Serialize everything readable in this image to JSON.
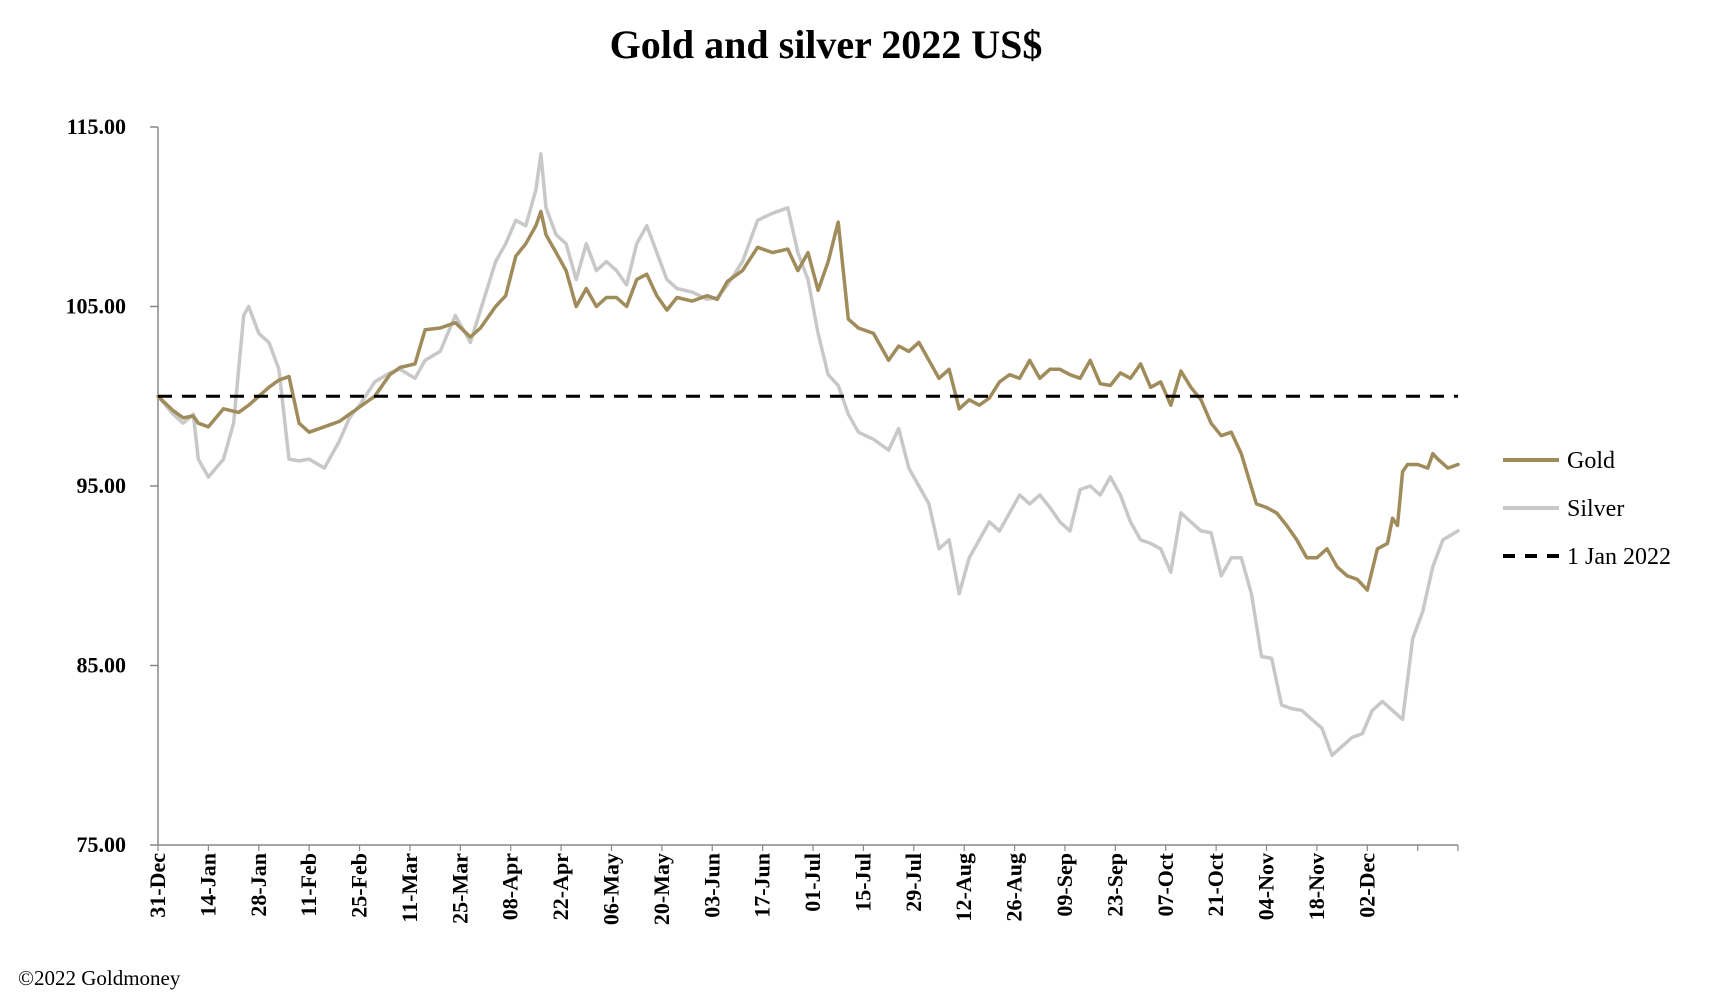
{
  "chart_data": {
    "type": "line",
    "title": "Gold and silver 2022  US$",
    "xlabel": "",
    "ylabel": "",
    "ylim": [
      75,
      115
    ],
    "yticks": [
      "75.00",
      "85.00",
      "95.00",
      "105.00",
      "115.00"
    ],
    "ytick_values": [
      75,
      85,
      95,
      105,
      115
    ],
    "categories": [
      "31-Dec",
      "14-Jan",
      "28-Jan",
      "11-Feb",
      "25-Feb",
      "11-Mar",
      "25-Mar",
      "08-Apr",
      "22-Apr",
      "06-May",
      "20-May",
      "03-Jun",
      "17-Jun",
      "01-Jul",
      "15-Jul",
      "29-Jul",
      "12-Aug",
      "26-Aug",
      "09-Sep",
      "23-Sep",
      "07-Oct",
      "21-Oct",
      "04-Nov",
      "18-Nov",
      "02-Dec"
    ],
    "x_span": 25.8,
    "legend_position": "right",
    "series": [
      {
        "name": "Gold",
        "color": "#a08c5b",
        "style": "solid",
        "points": [
          [
            0,
            100
          ],
          [
            0.3,
            99.2
          ],
          [
            0.5,
            98.8
          ],
          [
            0.7,
            98.9
          ],
          [
            0.8,
            98.5
          ],
          [
            1.0,
            98.3
          ],
          [
            1.3,
            99.3
          ],
          [
            1.6,
            99.1
          ],
          [
            1.8,
            99.5
          ],
          [
            2.0,
            100
          ],
          [
            2.2,
            100.5
          ],
          [
            2.4,
            100.9
          ],
          [
            2.6,
            101.1
          ],
          [
            2.8,
            98.5
          ],
          [
            3.0,
            98.0
          ],
          [
            3.3,
            98.3
          ],
          [
            3.6,
            98.6
          ],
          [
            3.8,
            99.0
          ],
          [
            4.0,
            99.4
          ],
          [
            4.3,
            100.0
          ],
          [
            4.6,
            101.2
          ],
          [
            4.8,
            101.6
          ],
          [
            5.1,
            101.8
          ],
          [
            5.3,
            103.7
          ],
          [
            5.6,
            103.8
          ],
          [
            5.9,
            104.1
          ],
          [
            6.2,
            103.3
          ],
          [
            6.4,
            103.8
          ],
          [
            6.7,
            105.0
          ],
          [
            6.9,
            105.6
          ],
          [
            7.1,
            107.8
          ],
          [
            7.3,
            108.5
          ],
          [
            7.5,
            109.5
          ],
          [
            7.6,
            110.3
          ],
          [
            7.7,
            109.0
          ],
          [
            7.9,
            108.0
          ],
          [
            8.1,
            107.0
          ],
          [
            8.3,
            105.0
          ],
          [
            8.5,
            106.0
          ],
          [
            8.7,
            105.0
          ],
          [
            8.9,
            105.5
          ],
          [
            9.1,
            105.5
          ],
          [
            9.3,
            105.0
          ],
          [
            9.5,
            106.5
          ],
          [
            9.7,
            106.8
          ],
          [
            9.9,
            105.6
          ],
          [
            10.1,
            104.8
          ],
          [
            10.3,
            105.5
          ],
          [
            10.6,
            105.3
          ],
          [
            10.9,
            105.6
          ],
          [
            11.1,
            105.4
          ],
          [
            11.3,
            106.4
          ],
          [
            11.6,
            107.0
          ],
          [
            11.9,
            108.3
          ],
          [
            12.2,
            108.0
          ],
          [
            12.5,
            108.2
          ],
          [
            12.7,
            107.0
          ],
          [
            12.9,
            108.0
          ],
          [
            13.1,
            105.9
          ],
          [
            13.3,
            107.5
          ],
          [
            13.5,
            109.7
          ],
          [
            13.7,
            104.3
          ],
          [
            13.9,
            103.8
          ],
          [
            14.2,
            103.5
          ],
          [
            14.5,
            102.0
          ],
          [
            14.7,
            102.8
          ],
          [
            14.9,
            102.5
          ],
          [
            15.1,
            103.0
          ],
          [
            15.3,
            102.0
          ],
          [
            15.5,
            101.0
          ],
          [
            15.7,
            101.5
          ],
          [
            15.9,
            99.3
          ],
          [
            16.1,
            99.8
          ],
          [
            16.3,
            99.5
          ],
          [
            16.5,
            99.9
          ],
          [
            16.7,
            100.8
          ],
          [
            16.9,
            101.2
          ],
          [
            17.1,
            101.0
          ],
          [
            17.3,
            102.0
          ],
          [
            17.5,
            101.0
          ],
          [
            17.7,
            101.5
          ],
          [
            17.9,
            101.5
          ],
          [
            18.1,
            101.2
          ],
          [
            18.3,
            101.0
          ],
          [
            18.5,
            102.0
          ],
          [
            18.7,
            100.7
          ],
          [
            18.9,
            100.6
          ],
          [
            19.1,
            101.3
          ],
          [
            19.3,
            101.0
          ],
          [
            19.5,
            101.8
          ],
          [
            19.7,
            100.5
          ],
          [
            19.9,
            100.8
          ],
          [
            20.1,
            99.5
          ],
          [
            20.3,
            101.4
          ],
          [
            20.5,
            100.5
          ],
          [
            20.7,
            99.8
          ],
          [
            20.9,
            98.5
          ],
          [
            21.1,
            97.8
          ],
          [
            21.3,
            98.0
          ],
          [
            21.5,
            96.8
          ],
          [
            21.8,
            94.0
          ],
          [
            22.0,
            93.8
          ],
          [
            22.2,
            93.5
          ],
          [
            22.4,
            92.8
          ],
          [
            22.6,
            92.0
          ],
          [
            22.8,
            91.0
          ],
          [
            23.0,
            91.0
          ],
          [
            23.2,
            91.5
          ],
          [
            23.4,
            90.5
          ],
          [
            23.6,
            90.0
          ],
          [
            23.8,
            89.8
          ],
          [
            24.0,
            89.2
          ],
          [
            24.2,
            91.5
          ],
          [
            24.4,
            91.8
          ],
          [
            24.5,
            93.2
          ],
          [
            24.6,
            92.8
          ],
          [
            24.7,
            95.8
          ],
          [
            24.8,
            96.2
          ],
          [
            25.0,
            96.2
          ],
          [
            25.2,
            96.0
          ],
          [
            25.3,
            96.8
          ],
          [
            25.4,
            96.5
          ],
          [
            25.6,
            96.0
          ],
          [
            25.8,
            96.2
          ]
        ]
      },
      {
        "name": "Silver",
        "color": "#c8c8c8",
        "style": "solid",
        "points": [
          [
            0,
            100
          ],
          [
            0.3,
            99.0
          ],
          [
            0.5,
            98.5
          ],
          [
            0.7,
            99.0
          ],
          [
            0.8,
            96.5
          ],
          [
            1.0,
            95.5
          ],
          [
            1.3,
            96.5
          ],
          [
            1.5,
            98.5
          ],
          [
            1.7,
            104.5
          ],
          [
            1.8,
            105.0
          ],
          [
            2.0,
            103.5
          ],
          [
            2.2,
            103.0
          ],
          [
            2.4,
            101.5
          ],
          [
            2.6,
            96.5
          ],
          [
            2.8,
            96.4
          ],
          [
            3.0,
            96.5
          ],
          [
            3.3,
            96.0
          ],
          [
            3.6,
            97.5
          ],
          [
            3.8,
            98.8
          ],
          [
            4.0,
            99.5
          ],
          [
            4.3,
            100.8
          ],
          [
            4.6,
            101.3
          ],
          [
            4.8,
            101.5
          ],
          [
            5.1,
            101.0
          ],
          [
            5.3,
            102.0
          ],
          [
            5.6,
            102.5
          ],
          [
            5.9,
            104.5
          ],
          [
            6.2,
            103.0
          ],
          [
            6.4,
            104.8
          ],
          [
            6.7,
            107.5
          ],
          [
            6.9,
            108.5
          ],
          [
            7.1,
            109.8
          ],
          [
            7.3,
            109.5
          ],
          [
            7.5,
            111.5
          ],
          [
            7.6,
            113.5
          ],
          [
            7.7,
            110.5
          ],
          [
            7.9,
            109.0
          ],
          [
            8.1,
            108.5
          ],
          [
            8.3,
            106.5
          ],
          [
            8.5,
            108.5
          ],
          [
            8.7,
            107.0
          ],
          [
            8.9,
            107.5
          ],
          [
            9.1,
            107.0
          ],
          [
            9.3,
            106.2
          ],
          [
            9.5,
            108.5
          ],
          [
            9.7,
            109.5
          ],
          [
            9.9,
            108.0
          ],
          [
            10.1,
            106.5
          ],
          [
            10.3,
            106.0
          ],
          [
            10.6,
            105.8
          ],
          [
            10.9,
            105.4
          ],
          [
            11.1,
            105.5
          ],
          [
            11.3,
            106.2
          ],
          [
            11.6,
            107.5
          ],
          [
            11.9,
            109.8
          ],
          [
            12.2,
            110.2
          ],
          [
            12.5,
            110.5
          ],
          [
            12.7,
            108.0
          ],
          [
            12.9,
            106.5
          ],
          [
            13.1,
            103.5
          ],
          [
            13.3,
            101.2
          ],
          [
            13.5,
            100.6
          ],
          [
            13.7,
            99.0
          ],
          [
            13.9,
            98.0
          ],
          [
            14.2,
            97.6
          ],
          [
            14.5,
            97.0
          ],
          [
            14.7,
            98.2
          ],
          [
            14.9,
            96.0
          ],
          [
            15.1,
            95.0
          ],
          [
            15.3,
            94.0
          ],
          [
            15.5,
            91.5
          ],
          [
            15.7,
            92.0
          ],
          [
            15.9,
            89.0
          ],
          [
            16.1,
            91.0
          ],
          [
            16.3,
            92.0
          ],
          [
            16.5,
            93.0
          ],
          [
            16.7,
            92.5
          ],
          [
            16.9,
            93.5
          ],
          [
            17.1,
            94.5
          ],
          [
            17.3,
            94.0
          ],
          [
            17.5,
            94.5
          ],
          [
            17.7,
            93.8
          ],
          [
            17.9,
            93.0
          ],
          [
            18.1,
            92.5
          ],
          [
            18.3,
            94.8
          ],
          [
            18.5,
            95.0
          ],
          [
            18.7,
            94.5
          ],
          [
            18.9,
            95.5
          ],
          [
            19.1,
            94.5
          ],
          [
            19.3,
            93.0
          ],
          [
            19.5,
            92.0
          ],
          [
            19.7,
            91.8
          ],
          [
            19.9,
            91.5
          ],
          [
            20.1,
            90.2
          ],
          [
            20.3,
            93.5
          ],
          [
            20.5,
            93.0
          ],
          [
            20.7,
            92.5
          ],
          [
            20.9,
            92.4
          ],
          [
            21.1,
            90.0
          ],
          [
            21.3,
            91.0
          ],
          [
            21.5,
            91.0
          ],
          [
            21.7,
            89.0
          ],
          [
            21.9,
            85.5
          ],
          [
            22.1,
            85.4
          ],
          [
            22.3,
            82.8
          ],
          [
            22.5,
            82.6
          ],
          [
            22.7,
            82.5
          ],
          [
            22.9,
            82.0
          ],
          [
            23.1,
            81.5
          ],
          [
            23.3,
            80.0
          ],
          [
            23.5,
            80.5
          ],
          [
            23.7,
            81.0
          ],
          [
            23.9,
            81.2
          ],
          [
            24.1,
            82.5
          ],
          [
            24.3,
            83.0
          ],
          [
            24.5,
            82.5
          ],
          [
            24.7,
            82.0
          ],
          [
            24.9,
            86.5
          ],
          [
            25.1,
            88.0
          ],
          [
            25.3,
            90.5
          ],
          [
            25.5,
            92.0
          ],
          [
            25.8,
            92.5
          ]
        ]
      },
      {
        "name": "1 Jan 2022",
        "color": "#000000",
        "style": "dashed",
        "points": [
          [
            0,
            100
          ],
          [
            25.8,
            100
          ]
        ]
      }
    ]
  },
  "footer": {
    "copyright": "©2022 Goldmoney"
  }
}
